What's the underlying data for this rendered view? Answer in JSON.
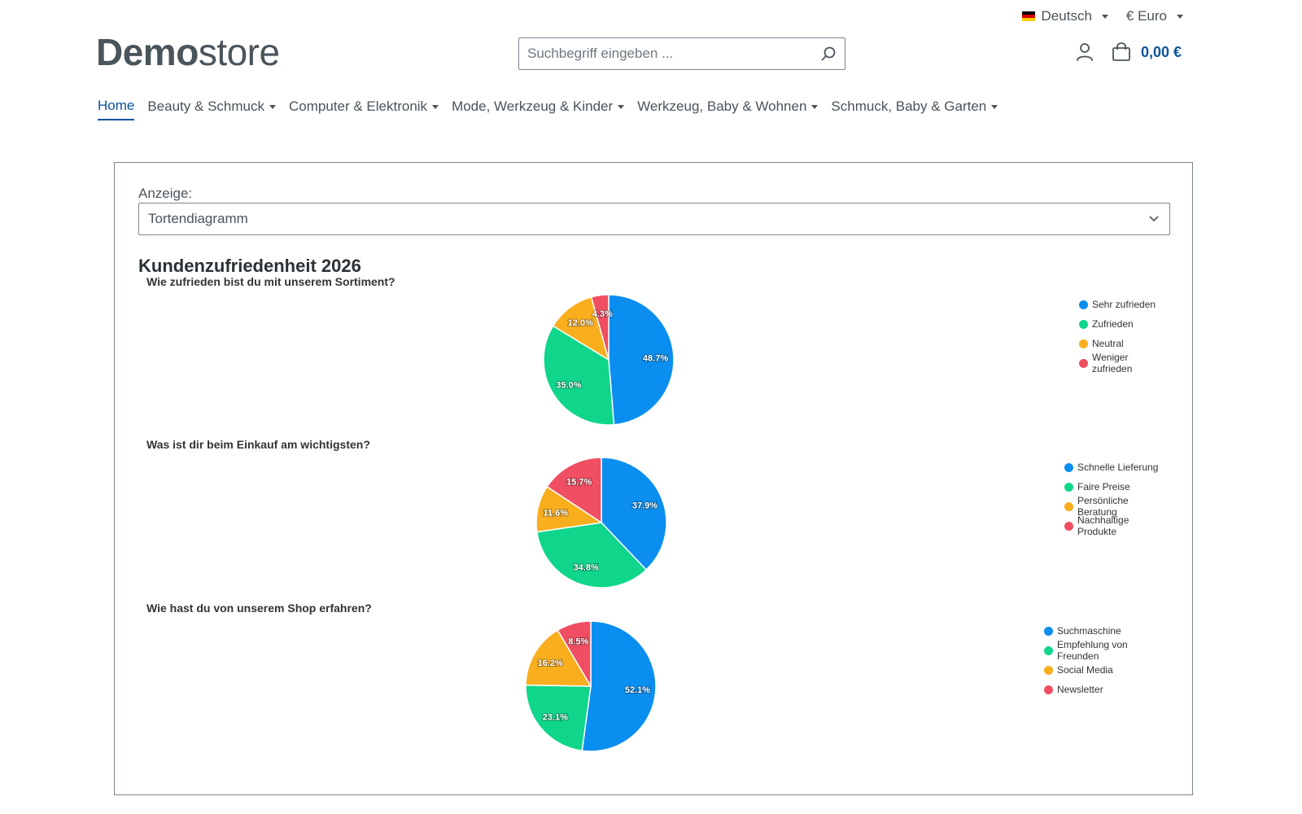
{
  "topbar": {
    "language": "Deutsch",
    "currency": "€ Euro"
  },
  "logo": {
    "bold": "Demo",
    "light": "store"
  },
  "search": {
    "placeholder": "Suchbegriff eingeben ..."
  },
  "cart": {
    "total": "0,00 €"
  },
  "nav": [
    {
      "label": "Home",
      "active": true,
      "dropdown": false
    },
    {
      "label": "Beauty & Schmuck",
      "active": false,
      "dropdown": true
    },
    {
      "label": "Computer & Elektronik",
      "active": false,
      "dropdown": true
    },
    {
      "label": "Mode, Werkzeug & Kinder",
      "active": false,
      "dropdown": true
    },
    {
      "label": "Werkzeug, Baby & Wohnen",
      "active": false,
      "dropdown": true
    },
    {
      "label": "Schmuck, Baby & Garten",
      "active": false,
      "dropdown": true
    }
  ],
  "panel": {
    "anzeige_label": "Anzeige:",
    "select_value": "Tortendiagramm",
    "title": "Kundenzufriedenheit 2026"
  },
  "colors": {
    "brand": "#0b539b",
    "series": [
      "#0a8ef0",
      "#0fd68b",
      "#f9ae1e",
      "#f04e62"
    ]
  },
  "chart_data": [
    {
      "type": "pie",
      "title": "Wie zufrieden bist du mit unserem Sortiment?",
      "categories": [
        "Sehr zufrieden",
        "Zufrieden",
        "Neutral",
        "Weniger zufrieden"
      ],
      "values": [
        48.7,
        35.0,
        12.0,
        4.3
      ],
      "labels": [
        "48.7%",
        "35.0%",
        "12.0%",
        "4.3%"
      ],
      "legend": "top-right"
    },
    {
      "type": "pie",
      "title": "Was ist dir beim Einkauf am wichtigsten?",
      "categories": [
        "Schnelle Lieferung",
        "Faire Preise",
        "Persönliche Beratung",
        "Nachhaltige Produkte"
      ],
      "values": [
        37.9,
        34.8,
        11.6,
        15.7
      ],
      "labels": [
        "37.9%",
        "34.8%",
        "11.6%",
        "15.7%"
      ],
      "legend": "top-right"
    },
    {
      "type": "pie",
      "title": "Wie hast du von unserem Shop erfahren?",
      "categories": [
        "Suchmaschine",
        "Empfehlung von Freunden",
        "Social Media",
        "Newsletter"
      ],
      "values": [
        52.1,
        23.1,
        16.2,
        8.5
      ],
      "labels": [
        "52.1%",
        "23.1%",
        "16.2%",
        "8.5%"
      ],
      "legend": "top-right"
    }
  ]
}
